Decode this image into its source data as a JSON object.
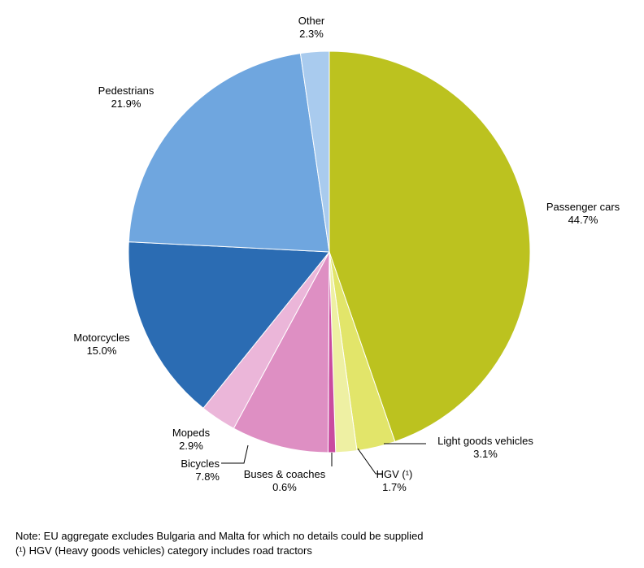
{
  "chart_data": {
    "type": "pie",
    "title": "",
    "colors": {
      "Passenger cars": "#bcc21f",
      "Light goods vehicles": "#e2e56a",
      "HGV (¹)": "#eef0a3",
      "Buses & coaches": "#c94ba0",
      "Bicycles": "#de8fc3",
      "Mopeds": "#ebb6d9",
      "Motorcycles": "#2b6cb3",
      "Pedestrians": "#6fa6df",
      "Other": "#a9cbee"
    },
    "slices": [
      {
        "label": "Passenger cars",
        "value": 44.7,
        "value_label": "44.7%"
      },
      {
        "label": "Light goods vehicles",
        "value": 3.1,
        "value_label": "3.1%"
      },
      {
        "label": "HGV (¹)",
        "value": 1.7,
        "value_label": "1.7%"
      },
      {
        "label": "Buses & coaches",
        "value": 0.6,
        "value_label": "0.6%"
      },
      {
        "label": "Bicycles",
        "value": 7.8,
        "value_label": "7.8%"
      },
      {
        "label": "Mopeds",
        "value": 2.9,
        "value_label": "2.9%"
      },
      {
        "label": "Motorcycles",
        "value": 15.0,
        "value_label": "15.0%"
      },
      {
        "label": "Pedestrians",
        "value": 21.9,
        "value_label": "21.9%"
      },
      {
        "label": "Other",
        "value": 2.3,
        "value_label": "2.3%"
      }
    ]
  },
  "notes": {
    "note_1": "Note: EU aggregate excludes Bulgaria and Malta for which no details could be supplied",
    "note_2": "(¹) HGV (Heavy goods vehicles) category includes road tractors"
  }
}
